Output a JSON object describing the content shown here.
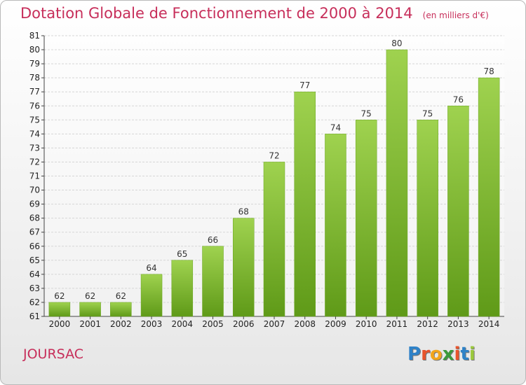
{
  "header": {
    "title": "Dotation Globale de Fonctionnement de 2000 à 2014",
    "unit": "(en milliers d'€)"
  },
  "footer": {
    "town": "JOURSAC",
    "logo_letters": [
      "P",
      "r",
      "o",
      "x",
      "i",
      "t",
      "i"
    ],
    "logo_colors": [
      "#2f82c8",
      "#e8542c",
      "#f2a51c",
      "#3b9a3b",
      "#e8542c",
      "#2f82c8",
      "#9bc93c"
    ]
  },
  "colors": {
    "bar_light": "#9fd24f",
    "bar_dark": "#5f9a18",
    "grid": "#d6d6d6",
    "accent": "#c72e5a"
  },
  "chart_data": {
    "type": "bar",
    "title": "Dotation Globale de Fonctionnement de 2000 à 2014",
    "subtitle": "(en milliers d'€)",
    "xlabel": "",
    "ylabel": "",
    "categories": [
      "2000",
      "2001",
      "2002",
      "2003",
      "2004",
      "2005",
      "2006",
      "2007",
      "2008",
      "2009",
      "2010",
      "2011",
      "2012",
      "2013",
      "2014"
    ],
    "values": [
      62,
      62,
      62,
      64,
      65,
      66,
      68,
      72,
      77,
      74,
      75,
      80,
      75,
      76,
      78
    ],
    "ylim": [
      61,
      81
    ],
    "yticks": [
      61,
      62,
      63,
      64,
      65,
      66,
      67,
      68,
      69,
      70,
      71,
      72,
      73,
      74,
      75,
      76,
      77,
      78,
      79,
      80,
      81
    ],
    "grid": true,
    "legend": "none"
  }
}
